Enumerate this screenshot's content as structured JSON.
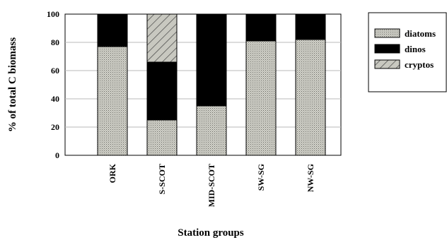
{
  "chart_data": {
    "type": "bar",
    "stacked": true,
    "categories": [
      "ORK",
      "S-SCOT",
      "MID-SCOT",
      "SW-SG",
      "NW-SG"
    ],
    "series": [
      {
        "name": "diatoms",
        "values": [
          77,
          25,
          35,
          81,
          82
        ],
        "pattern": "dotted",
        "color": "#c8c8c0"
      },
      {
        "name": "dinos",
        "values": [
          23,
          41,
          65,
          19,
          18
        ],
        "pattern": "solid",
        "color": "#000000"
      },
      {
        "name": "cryptos",
        "values": [
          0,
          34,
          0,
          0,
          0
        ],
        "pattern": "hatched",
        "color": "#c8c8c0"
      }
    ],
    "xlabel": "Station groups",
    "ylabel": "% of total C biomass",
    "ylim": [
      0,
      100
    ],
    "yticks": [
      0,
      20,
      40,
      60,
      80,
      100
    ],
    "grid": true,
    "legend_position": "right"
  }
}
